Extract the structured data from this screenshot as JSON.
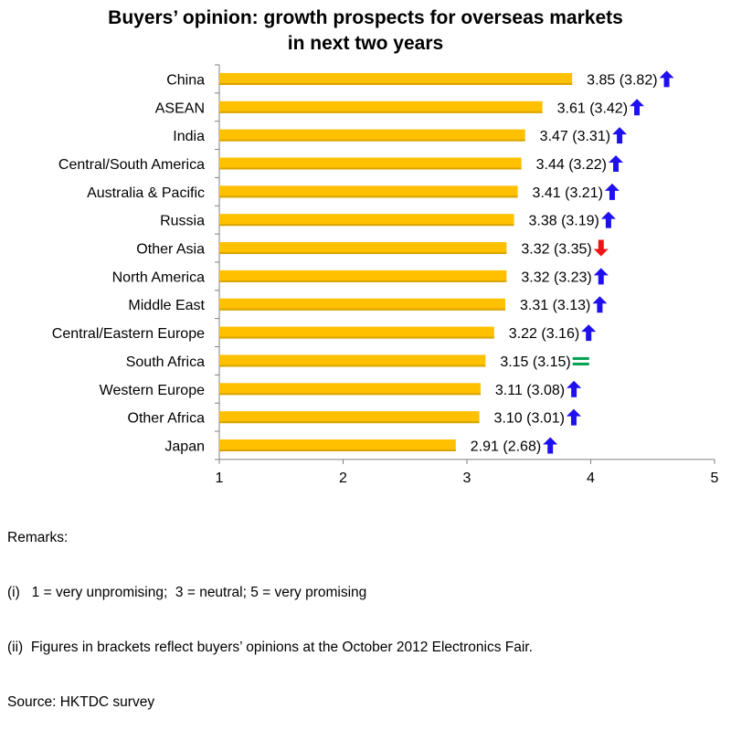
{
  "title_line1": "Buyers’ opinion: growth prospects for overseas markets",
  "title_line2": "in next two years",
  "chart_data": {
    "type": "bar",
    "orientation": "horizontal",
    "categories": [
      "China",
      "ASEAN",
      "India",
      "Central/South America",
      "Australia & Pacific",
      "Russia",
      "Other Asia",
      "North America",
      "Middle East",
      "Central/Eastern Europe",
      "South Africa",
      "Western Europe",
      "Other Africa",
      "Japan"
    ],
    "values": [
      3.85,
      3.61,
      3.47,
      3.44,
      3.41,
      3.38,
      3.32,
      3.32,
      3.31,
      3.22,
      3.15,
      3.11,
      3.1,
      2.91
    ],
    "previous_values": [
      3.82,
      3.42,
      3.31,
      3.22,
      3.21,
      3.19,
      3.35,
      3.23,
      3.13,
      3.16,
      3.15,
      3.08,
      3.01,
      2.68
    ],
    "value_labels": [
      "3.85 (3.82)",
      "3.61 (3.42)",
      "3.47 (3.31)",
      "3.44 (3.22)",
      "3.41 (3.21)",
      "3.38 (3.19)",
      "3.32 (3.35)",
      "3.32 (3.23)",
      "3.31 (3.13)",
      "3.22 (3.16)",
      "3.15 (3.15)",
      "3.11 (3.08)",
      "3.10 (3.01)",
      "2.91 (2.68)"
    ],
    "trend": [
      "up",
      "up",
      "up",
      "up",
      "up",
      "up",
      "down",
      "up",
      "up",
      "up",
      "equal",
      "up",
      "up",
      "up"
    ],
    "xlim": [
      1,
      5
    ],
    "xticks": [
      "1",
      "2",
      "3",
      "4",
      "5"
    ],
    "grid": false,
    "colors": {
      "bar": "#FFC000",
      "up": "#1F10F0",
      "down": "#F01414",
      "equal": "#00A050",
      "axis": "#808080"
    }
  },
  "remarks": {
    "heading": "Remarks:",
    "line1": "(i)   1 = very unpromising;  3 = neutral; 5 = very promising",
    "line2": "(ii)  Figures in brackets reflect buyers’ opinions at the October 2012 Electronics Fair.",
    "source": "Source: HKTDC survey"
  }
}
